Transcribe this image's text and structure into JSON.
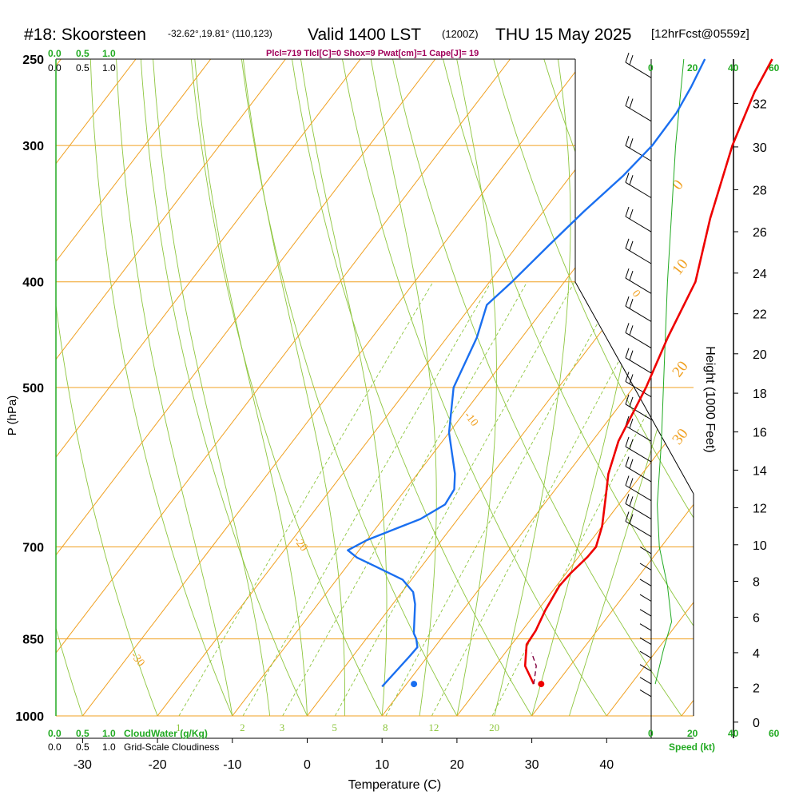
{
  "header": {
    "station": "#18: Skoorsteen",
    "coords": "-32.62°,19.81° (110,123)",
    "valid": "Valid 1400 LST",
    "utc": "(1200Z)",
    "date": "THU 15 May 2025",
    "forecast": "[12hrFcst@0559z]",
    "indices": "Plcl=719 Tlcl[C]=0 Shox=9 Pwat[cm]=1 Cape[J]= 19"
  },
  "labels": {
    "cloudwater": "CloudWater (g/Kg)",
    "cloudiness": "Grid-Scale Cloudiness",
    "speed": "Speed (kt)",
    "cloud_ticks": [
      "0.0",
      "0.5",
      "1.0"
    ],
    "speed_ticks": [
      "0",
      "20",
      "40",
      "60"
    ]
  },
  "colors": {
    "temperature": "#ee0000",
    "dewpoint": "#1a6ff0",
    "isobar": "#f0a020",
    "isotherm": "#f0a020",
    "dry_adiabat": "#8ec63f",
    "moist_adiabat": "#8ec63f",
    "mixing_ratio": "#8ec63f",
    "wind_profile": "#22aa22",
    "parcel": "#800040"
  },
  "chart_data": {
    "type": "line",
    "title": "",
    "xlabel": "Temperature (C)",
    "ylabel": "P (hPa)",
    "y2label": "Height (1000 Feet)",
    "xlim": [
      -35,
      36
    ],
    "ylim": [
      1000,
      250
    ],
    "y_scale": "log",
    "x_ticks": [
      -30,
      -20,
      -10,
      0,
      10,
      20,
      30,
      40
    ],
    "pressure_ticks": [
      1000,
      850,
      700,
      500,
      400,
      300,
      250
    ],
    "height_ticks": [
      0,
      2,
      4,
      6,
      8,
      10,
      12,
      14,
      16,
      18,
      20,
      22,
      24,
      26,
      28,
      30,
      32
    ],
    "isotherm_labels": [
      -30,
      -20,
      -10,
      0,
      10,
      20,
      30
    ],
    "mixing_ratio_labels": [
      1,
      2,
      3,
      5,
      8,
      12,
      20
    ],
    "series": [
      {
        "name": "",
        "points": [
          [
            27,
            935
          ],
          [
            24,
            900
          ],
          [
            22,
            860
          ],
          [
            21.8,
            835
          ],
          [
            21,
            800
          ],
          [
            20.4,
            760
          ],
          [
            20.6,
            740
          ],
          [
            21.2,
            715
          ],
          [
            21.3,
            700
          ],
          [
            20,
            670
          ],
          [
            17.5,
            630
          ],
          [
            15.5,
            600
          ],
          [
            13.5,
            560
          ],
          [
            11.7,
            500
          ],
          [
            9.5,
            450
          ],
          [
            7.5,
            400
          ],
          [
            3,
            350
          ],
          [
            -1.5,
            300
          ],
          [
            -4,
            268
          ],
          [
            -5,
            250
          ]
        ]
      },
      {
        "name": "",
        "points": [
          [
            7,
            940
          ],
          [
            7.6,
            880
          ],
          [
            7.7,
            865
          ],
          [
            6.7,
            850
          ],
          [
            5.8,
            840
          ],
          [
            3,
            790
          ],
          [
            1.5,
            770
          ],
          [
            -1.2,
            750
          ],
          [
            -6,
            730
          ],
          [
            -9.5,
            716
          ],
          [
            -11.5,
            705
          ],
          [
            -10,
            690
          ],
          [
            -5,
            660
          ],
          [
            -3.2,
            640
          ],
          [
            -3.5,
            620
          ],
          [
            -5,
            600
          ],
          [
            -10,
            550
          ],
          [
            -14,
            500
          ],
          [
            -16,
            450
          ],
          [
            -18,
            420
          ],
          [
            -17,
            400
          ],
          [
            -15.8,
            370
          ],
          [
            -14.6,
            345
          ],
          [
            -13,
            320
          ],
          [
            -12.2,
            300
          ],
          [
            -12.3,
            280
          ],
          [
            -13,
            265
          ],
          [
            -14,
            250
          ]
        ]
      },
      {
        "name": "",
        "points": [
          [
            27,
            935
          ],
          [
            25.5,
            900
          ],
          [
            23.5,
            875
          ]
        ]
      }
    ],
    "surface_points": [
      {
        "t": 28,
        "p": 935
      },
      {
        "t": 11,
        "p": 935
      }
    ]
  }
}
